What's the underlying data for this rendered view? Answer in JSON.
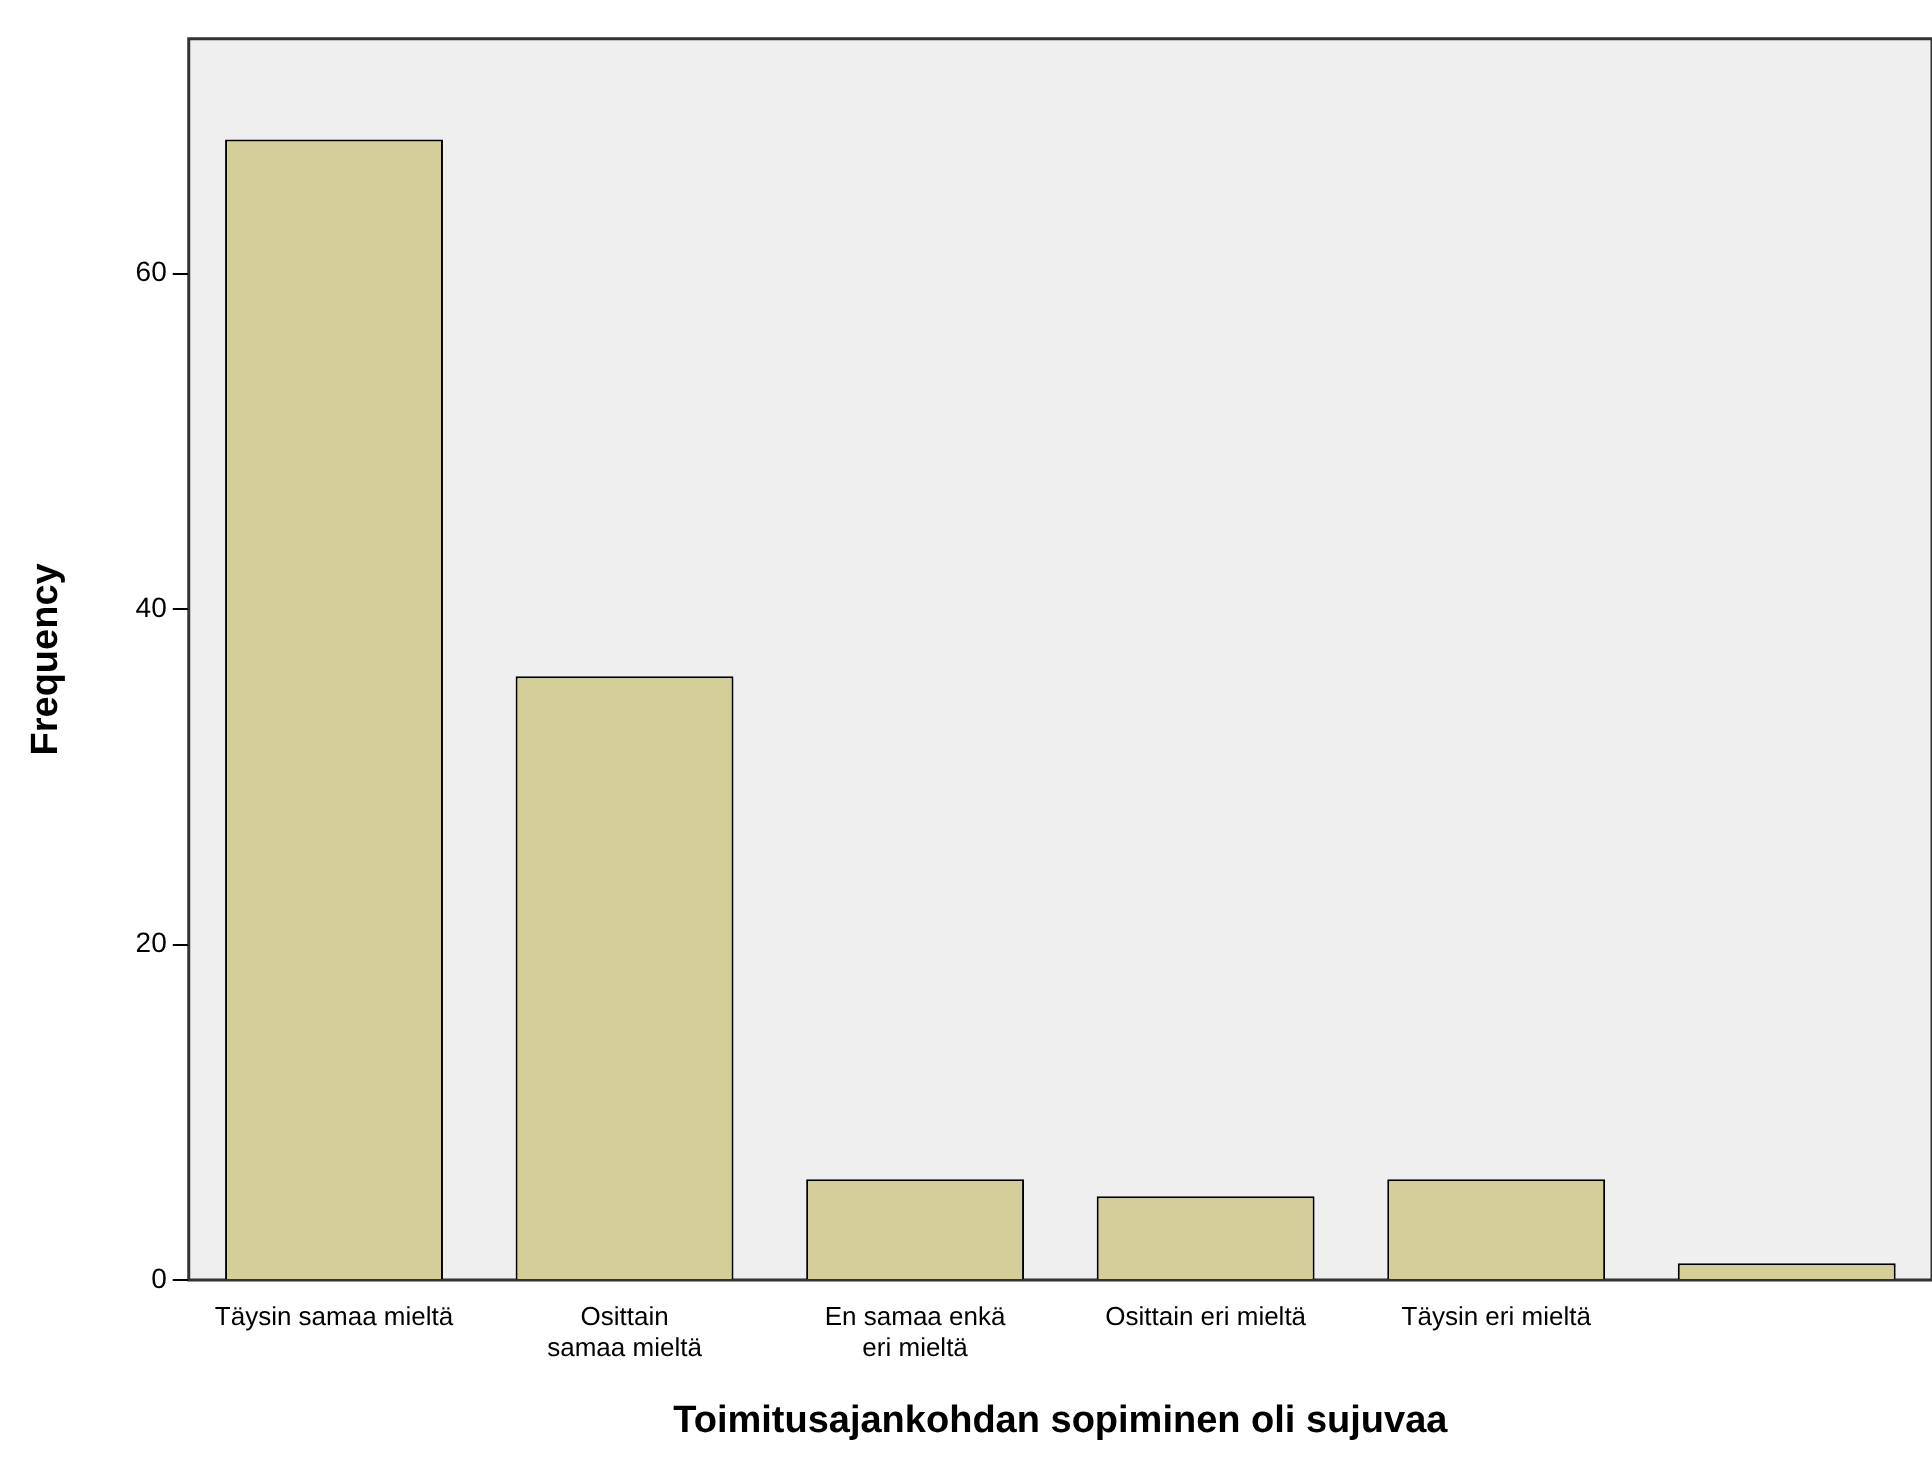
{
  "chart_data": {
    "type": "bar",
    "xlabel": "Toimitusajankohdan sopiminen oli sujuvaa",
    "ylabel": "Frequency",
    "categories": [
      "Täysin samaa mieltä",
      "Osittain samaa mieltä",
      "En samaa enkä eri mieltä",
      "Osittain eri mieltä",
      "Täysin eri mieltä",
      null
    ],
    "values": [
      68,
      36,
      6,
      5,
      6,
      1
    ],
    "color": "#d4cf98",
    "ylim": [
      0,
      74
    ],
    "yticks": [
      0,
      20,
      40,
      60
    ],
    "grid": false,
    "legend": false
  }
}
